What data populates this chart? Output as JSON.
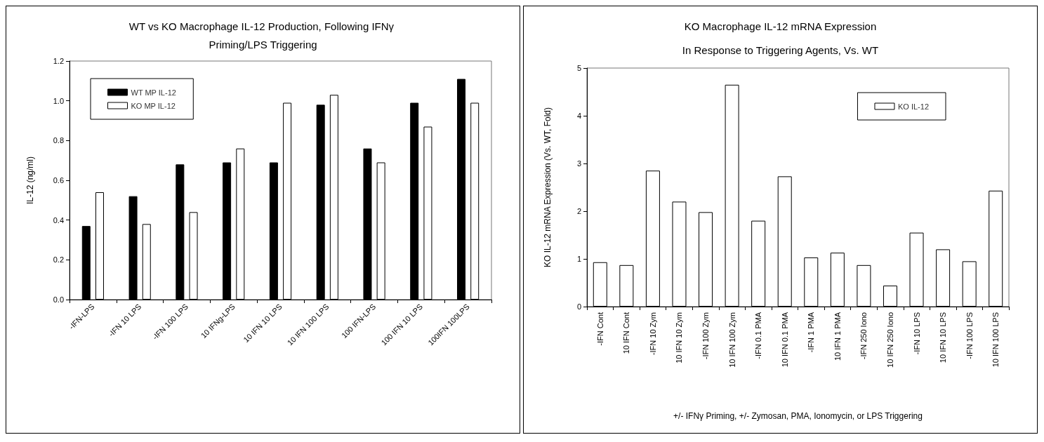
{
  "chart_data": [
    {
      "type": "bar",
      "title": "WT vs KO Macrophage IL-12 Production, Following IFNγ Priming/LPS Triggering",
      "ylabel": "IL-12 (ng/ml)",
      "categories": [
        "-IFN-LPS",
        "-IFN 10 LPS",
        "-IFN 100 LPS",
        "10 IFNg-LPS",
        "10 IFN 10 LPS",
        "10 IFN 100 LPS",
        "100 IFN-LPS",
        "100 IFN 10 LPS",
        "100IFN 100LPS"
      ],
      "series": [
        {
          "name": "WT MP IL-12",
          "color": "#000000",
          "values": [
            0.37,
            0.52,
            0.68,
            0.69,
            0.69,
            0.98,
            0.76,
            0.99,
            1.11
          ]
        },
        {
          "name": "KO MP IL-12",
          "color": "#ffffff",
          "values": [
            0.54,
            0.38,
            0.44,
            0.76,
            0.99,
            1.03,
            0.69,
            0.87,
            0.99
          ]
        }
      ],
      "ylim": [
        0,
        1.2
      ],
      "yticks": [
        {
          "value": 0,
          "label": "0.0"
        },
        0.2,
        0.4,
        0.6,
        0.8,
        {
          "value": 1,
          "label": "1.0"
        },
        1.2
      ],
      "legend": "top left"
    },
    {
      "type": "bar",
      "title": "KO Macrophage IL-12 mRNA Expression",
      "subtitle": "In Response to Triggering Agents, Vs. WT",
      "xlabel": "+/- IFNγ Priming, +/- Zymosan, PMA, Ionomycin, or LPS Triggering",
      "ylabel": "KO IL-12 mRNA Expression (Vs. WT, Fold)",
      "categories": [
        "-IFN Cont",
        "10 IFN Cont",
        "-IFN 10 Zym",
        "10 IFN 10 Zym",
        "-IFN 100 Zym",
        "10 IFN 100 Zym",
        "-IFN 0.1 PMA",
        "10 IFN 0.1 PMA",
        "-IFN 1 PMA",
        "10 IFN 1 PMA",
        "-IFN 250 Iono",
        "10 IFN 250 Iono",
        "-IFN 10 LPS",
        "10 IFN 10 LPS",
        "-IFN 100 LPS",
        "10 IFN 100 LPS"
      ],
      "series": [
        {
          "name": "KO IL-12",
          "color": "#ffffff",
          "values": [
            0.93,
            0.87,
            2.85,
            2.2,
            1.98,
            4.65,
            1.8,
            2.73,
            1.03,
            1.13,
            0.87,
            0.44,
            1.55,
            1.2,
            0.95,
            2.43
          ]
        }
      ],
      "ylim": [
        0,
        5
      ],
      "yticks": [
        0,
        1,
        2,
        3,
        4,
        5
      ],
      "legend": "top right"
    }
  ]
}
